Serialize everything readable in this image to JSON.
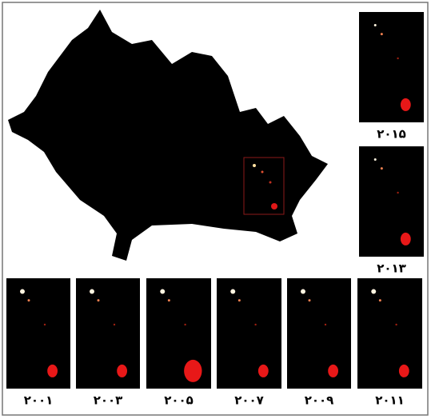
{
  "panels": [
    {
      "label": "۲۰۱۵"
    },
    {
      "label": "۲۰۱۳"
    },
    {
      "label": "۲۰۰۱"
    },
    {
      "label": "۲۰۰۳"
    },
    {
      "label": "۲۰۰۵"
    },
    {
      "label": "۲۰۰۷"
    },
    {
      "label": "۲۰۰۹"
    },
    {
      "label": "۲۰۱۱"
    }
  ]
}
